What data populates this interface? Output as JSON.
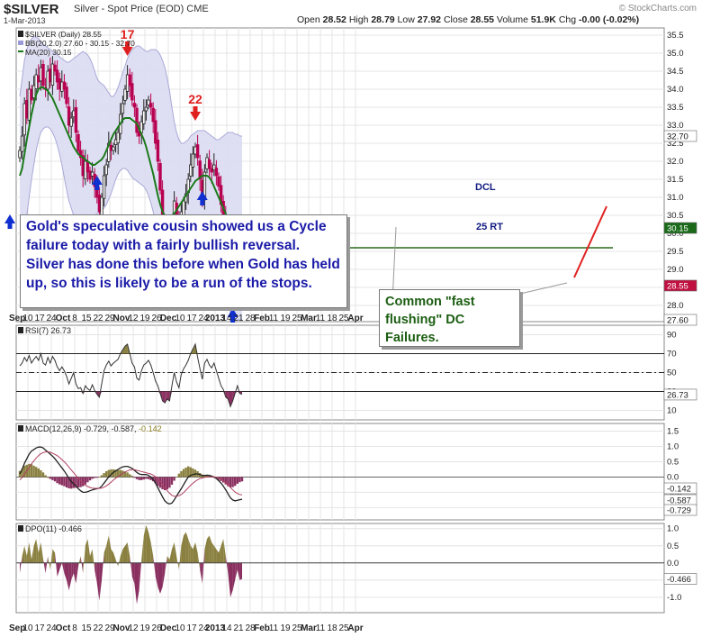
{
  "header": {
    "symbol": "$SILVER",
    "description": "Silver - Spot Price (EOD)  CME",
    "date": "1-Mar-2013",
    "brand": "© StockCharts.com",
    "ohlc": {
      "open_label": "Open",
      "open": "28.52",
      "high_label": "High",
      "high": "28.79",
      "low_label": "Low",
      "low": "27.92",
      "close_label": "Close",
      "close": "28.55",
      "volume_label": "Volume",
      "volume": "51.9K",
      "chg_label": "Chg",
      "chg": "-0.00 (-0.02%)"
    }
  },
  "colors": {
    "up_candle": "#ffffff",
    "down_candle": "#b80050",
    "band_fill": "#dcdcf2",
    "band_edge": "#a8a8d8",
    "ma_line": "#1a7a1a",
    "arrow_blue": "#1030d0",
    "arrow_red": "#e02020",
    "osc_pos_fill": "#8a8040",
    "osc_neg_fill": "#8a3060",
    "grid": "#e4e4e4"
  },
  "annotations": {
    "left_note": "Gold's speculative cousin showed us a Cycle failure today with a fairly bullish reversal. Silver has done this before when Gold has held up, so this is likely to be a run of the stops.",
    "right_note": "Common \"fast flushing\" DC Failures.",
    "cycle_17": "17",
    "cycle_22": "22",
    "dcl_label": "DCL",
    "rt_label": "25 RT"
  },
  "chart_data": [
    {
      "type": "candlestick",
      "title": "$SILVER (Daily) 28.55",
      "legend": [
        "$SILVER (Daily) 28.55",
        "BB(20,2.0) 27.60 - 30.15 - 32.70",
        "MA(20) 30.15"
      ],
      "y_axis_ticks": [
        28.0,
        28.5,
        29.0,
        29.5,
        30.0,
        30.5,
        31.0,
        31.5,
        32.0,
        32.5,
        33.0,
        33.5,
        34.0,
        34.5,
        35.0,
        35.5
      ],
      "y_tick_labels": [
        "28.0",
        "28.5",
        "29.0",
        "29.5",
        "30.0",
        "30.5",
        "31.0",
        "31.5",
        "32.0",
        "32.5",
        "33.0",
        "33.5",
        "34.0",
        "34.5",
        "35.0",
        "35.5"
      ],
      "ylim": [
        27.55,
        35.7
      ],
      "value_badges": [
        {
          "label": "32.70",
          "value": 32.7,
          "style": "band"
        },
        {
          "label": "30.15",
          "value": 30.15,
          "style": "ma"
        },
        {
          "label": "28.55",
          "value": 28.55,
          "style": "price"
        },
        {
          "label": "27.60",
          "value": 27.6,
          "style": "band"
        }
      ],
      "x_tick_labels": [
        "Sep",
        "10",
        "17",
        "24",
        "Oct",
        "8",
        "15",
        "22",
        "29",
        "Nov",
        "12",
        "19",
        "26",
        "Dec",
        "10",
        "17",
        "24",
        "2013",
        "14",
        "21",
        "28",
        "Feb",
        "11",
        "19",
        "25",
        "Mar",
        "11",
        "18",
        "25",
        "Apr"
      ],
      "x_bold_labels": [
        "Sep",
        "Oct",
        "Nov",
        "Dec",
        "2013",
        "Feb",
        "Mar",
        "Apr"
      ],
      "closes": [
        32.3,
        32.7,
        33.6,
        33.2,
        34.0,
        33.7,
        34.1,
        34.4,
        34.2,
        34.6,
        34.1,
        34.0,
        34.5,
        34.2,
        34.7,
        34.5,
        34.2,
        34.0,
        34.2,
        34.0,
        33.6,
        33.0,
        33.2,
        33.4,
        32.8,
        32.3,
        32.1,
        31.6,
        32.0,
        31.7,
        31.5,
        31.7,
        31.3,
        31.0,
        30.6,
        31.0,
        31.6,
        31.9,
        32.5,
        32.3,
        32.4,
        32.6,
        32.8,
        33.3,
        33.6,
        34.0,
        34.4,
        34.1,
        33.7,
        33.5,
        32.8,
        32.7,
        33.1,
        33.4,
        33.5,
        33.7,
        33.5,
        33.1,
        32.5,
        32.0,
        31.2,
        30.2,
        29.8,
        29.9,
        29.8,
        30.3,
        30.9,
        30.3,
        30.0,
        30.6,
        30.9,
        31.1,
        31.5,
        31.9,
        32.2,
        32.4,
        32.1,
        31.5,
        30.9,
        31.7,
        32.1,
        31.8,
        31.7,
        31.9,
        31.6,
        31.3,
        30.8,
        30.5,
        29.7,
        29.3,
        28.4,
        28.6,
        28.9,
        29.3,
        28.8,
        28.55
      ],
      "bb_upper": [
        33.8,
        34.3,
        34.8,
        35.1,
        35.3,
        35.4,
        35.45,
        35.45,
        35.4,
        35.3,
        35.25,
        35.2,
        35.15,
        35.1,
        35.05,
        35.0,
        34.95,
        34.9,
        34.85,
        34.8,
        34.75,
        34.75,
        34.8,
        34.85,
        34.9,
        34.95,
        35.0,
        35.05,
        35.0,
        34.95,
        34.85,
        34.7,
        34.5,
        34.3,
        34.2,
        34.15,
        34.1,
        34.0,
        33.9,
        33.8,
        33.8,
        33.9,
        34.05,
        34.25,
        34.45,
        34.65,
        34.85,
        35.0,
        35.1,
        35.15,
        35.2,
        35.2,
        35.15,
        35.1,
        35.05,
        35.05,
        35.1,
        35.1,
        35.1,
        35.05,
        34.95,
        34.8,
        34.6,
        34.3,
        33.95,
        33.5,
        33.1,
        32.8,
        32.6,
        32.5,
        32.5,
        32.55,
        32.6,
        32.7,
        32.75,
        32.8,
        32.85,
        32.85,
        32.85,
        32.85,
        32.8,
        32.75,
        32.7,
        32.65,
        32.6,
        32.6,
        32.65,
        32.7,
        32.75,
        32.8,
        32.8,
        32.8,
        32.75,
        32.75,
        32.7,
        32.7
      ],
      "bb_lower": [
        29.8,
        29.9,
        30.1,
        30.5,
        31.0,
        31.5,
        31.9,
        32.3,
        32.6,
        32.8,
        32.9,
        32.95,
        32.95,
        32.9,
        32.8,
        32.65,
        32.45,
        32.2,
        31.9,
        31.55,
        31.2,
        30.9,
        30.7,
        30.5,
        30.4,
        30.35,
        30.3,
        30.3,
        30.3,
        30.35,
        30.4,
        30.45,
        30.5,
        30.55,
        30.6,
        30.65,
        30.7,
        30.8,
        30.95,
        31.1,
        31.3,
        31.5,
        31.65,
        31.75,
        31.8,
        31.8,
        31.75,
        31.65,
        31.55,
        31.5,
        31.45,
        31.4,
        31.35,
        31.3,
        31.2,
        31.05,
        30.85,
        30.6,
        30.3,
        30.0,
        29.7,
        29.45,
        29.3,
        29.25,
        29.3,
        29.35,
        29.45,
        29.6,
        29.75,
        29.95,
        30.1,
        30.25,
        30.35,
        30.4,
        30.45,
        30.45,
        30.45,
        30.4,
        30.35,
        30.3,
        30.25,
        30.2,
        30.1,
        29.95,
        29.7,
        29.4,
        29.05,
        28.7,
        28.35,
        28.05,
        27.8,
        27.65,
        27.6,
        27.6,
        27.6,
        27.6
      ],
      "ma20": [
        31.6,
        31.8,
        32.2,
        32.6,
        32.95,
        33.3,
        33.6,
        33.85,
        34.0,
        34.05,
        34.05,
        34.0,
        33.95,
        33.85,
        33.75,
        33.6,
        33.45,
        33.3,
        33.15,
        33.0,
        32.85,
        32.7,
        32.55,
        32.4,
        32.3,
        32.2,
        32.15,
        32.1,
        32.05,
        32.0,
        31.95,
        31.9,
        31.9,
        31.95,
        32.0,
        32.05,
        32.15,
        32.3,
        32.45,
        32.6,
        32.75,
        32.85,
        32.95,
        33.05,
        33.15,
        33.2,
        33.2,
        33.2,
        33.15,
        33.1,
        33.05,
        32.9,
        32.75,
        32.6,
        32.4,
        32.15,
        31.9,
        31.65,
        31.35,
        31.05,
        30.8,
        30.6,
        30.5,
        30.45,
        30.45,
        30.5,
        30.55,
        30.65,
        30.75,
        30.85,
        30.95,
        31.05,
        31.15,
        31.25,
        31.35,
        31.45,
        31.5,
        31.55,
        31.6,
        31.6,
        31.6,
        31.55,
        31.45,
        31.3,
        31.15,
        31.0,
        30.85,
        30.7,
        30.55,
        30.4,
        30.3,
        30.2,
        30.15,
        30.15,
        30.15,
        30.15
      ],
      "trend_line_value": 29.6,
      "cycle_markers": [
        {
          "label": "17",
          "bar": 46,
          "style": "red-down"
        },
        {
          "label": "22",
          "bar": 75,
          "style": "red-down"
        }
      ],
      "low_markers": [
        0,
        33,
        62,
        78,
        91
      ]
    },
    {
      "type": "line",
      "title": "RSI(7) 26.73",
      "y_tick_labels": [
        "10",
        "30",
        "50",
        "70",
        "90"
      ],
      "y_ticks": [
        10,
        30,
        50,
        70,
        90
      ],
      "ylim": [
        0,
        100
      ],
      "reference_lines": [
        30,
        50,
        70
      ],
      "value_badge": "26.73",
      "values": [
        57,
        60,
        66,
        62,
        68,
        60,
        64,
        67,
        63,
        70,
        60,
        58,
        66,
        60,
        67,
        63,
        56,
        52,
        56,
        52,
        46,
        38,
        44,
        50,
        38,
        33,
        34,
        28,
        36,
        33,
        31,
        37,
        31,
        27,
        24,
        38,
        52,
        58,
        62,
        57,
        60,
        62,
        64,
        70,
        74,
        78,
        80,
        70,
        60,
        56,
        44,
        42,
        52,
        58,
        60,
        63,
        58,
        50,
        41,
        36,
        28,
        20,
        18,
        22,
        20,
        36,
        50,
        40,
        34,
        48,
        54,
        58,
        63,
        70,
        75,
        80,
        66,
        54,
        43,
        60,
        64,
        58,
        55,
        60,
        52,
        44,
        36,
        32,
        24,
        22,
        14,
        20,
        28,
        36,
        28,
        27
      ]
    },
    {
      "type": "line",
      "title": "MACD(12,26,9) -0.729, -0.587, -0.142",
      "series_labels": [
        "MACD(12,26,9) -0.729",
        "-0.587",
        "-0.142"
      ],
      "y_tick_labels": [
        "1.5",
        "1.0",
        "0.5",
        "0.0",
        "-0.5",
        "-1.0"
      ],
      "y_ticks": [
        1.5,
        1.0,
        0.5,
        0.0,
        -0.5,
        -1.0
      ],
      "ylim": [
        -1.4,
        1.75
      ],
      "value_badges": [
        "-0.142",
        "-0.587",
        "-0.729"
      ],
      "macd": [
        0.1,
        0.25,
        0.45,
        0.6,
        0.75,
        0.85,
        0.9,
        0.95,
        0.98,
        0.98,
        0.95,
        0.88,
        0.82,
        0.75,
        0.68,
        0.6,
        0.5,
        0.4,
        0.3,
        0.2,
        0.08,
        -0.05,
        -0.15,
        -0.22,
        -0.3,
        -0.38,
        -0.45,
        -0.5,
        -0.5,
        -0.48,
        -0.45,
        -0.42,
        -0.4,
        -0.38,
        -0.36,
        -0.3,
        -0.2,
        -0.1,
        0.0,
        0.08,
        0.15,
        0.2,
        0.25,
        0.3,
        0.33,
        0.35,
        0.35,
        0.32,
        0.28,
        0.22,
        0.15,
        0.1,
        0.08,
        0.08,
        0.08,
        0.05,
        0.0,
        -0.08,
        -0.2,
        -0.35,
        -0.5,
        -0.65,
        -0.78,
        -0.85,
        -0.88,
        -0.85,
        -0.75,
        -0.62,
        -0.5,
        -0.38,
        -0.25,
        -0.12,
        0.0,
        0.05,
        0.08,
        0.1,
        0.1,
        0.08,
        0.05,
        0.05,
        0.06,
        0.05,
        0.03,
        0.0,
        -0.05,
        -0.12,
        -0.2,
        -0.3,
        -0.42,
        -0.55,
        -0.68,
        -0.75,
        -0.78,
        -0.76,
        -0.74,
        -0.729
      ],
      "signal": [
        -0.1,
        -0.02,
        0.08,
        0.2,
        0.32,
        0.43,
        0.53,
        0.62,
        0.7,
        0.76,
        0.8,
        0.82,
        0.82,
        0.81,
        0.78,
        0.74,
        0.7,
        0.64,
        0.57,
        0.5,
        0.42,
        0.32,
        0.23,
        0.14,
        0.05,
        -0.04,
        -0.12,
        -0.2,
        -0.26,
        -0.31,
        -0.34,
        -0.36,
        -0.37,
        -0.37,
        -0.37,
        -0.36,
        -0.33,
        -0.29,
        -0.23,
        -0.17,
        -0.1,
        -0.04,
        0.02,
        0.07,
        0.12,
        0.17,
        0.2,
        0.23,
        0.24,
        0.24,
        0.22,
        0.2,
        0.18,
        0.16,
        0.14,
        0.12,
        0.1,
        0.06,
        0.01,
        -0.06,
        -0.15,
        -0.25,
        -0.35,
        -0.45,
        -0.53,
        -0.6,
        -0.63,
        -0.63,
        -0.61,
        -0.57,
        -0.51,
        -0.43,
        -0.35,
        -0.27,
        -0.2,
        -0.14,
        -0.09,
        -0.05,
        -0.03,
        -0.01,
        0.0,
        0.01,
        0.01,
        0.01,
        -0.01,
        -0.03,
        -0.07,
        -0.12,
        -0.18,
        -0.25,
        -0.34,
        -0.42,
        -0.49,
        -0.54,
        -0.57,
        -0.587
      ]
    },
    {
      "type": "area",
      "title": "DPO(11) -0.466",
      "y_tick_labels": [
        "1.0",
        "0.5",
        "0.0",
        "-0.5",
        "-1.0"
      ],
      "y_ticks": [
        1.0,
        0.5,
        0.0,
        -0.5,
        -1.0
      ],
      "ylim": [
        -1.45,
        1.15
      ],
      "value_badge": "-0.466",
      "values": [
        -0.3,
        0.2,
        0.5,
        0.2,
        0.6,
        0.1,
        0.5,
        0.7,
        0.3,
        0.6,
        0.1,
        -0.3,
        0.2,
        -0.2,
        0.4,
        0.3,
        -0.4,
        -0.2,
        0.0,
        -0.3,
        -0.5,
        -0.8,
        -0.5,
        -0.3,
        -0.6,
        -0.1,
        0.2,
        -0.3,
        0.5,
        0.7,
        0.2,
        0.4,
        -0.2,
        -0.6,
        -1.1,
        -0.5,
        0.3,
        0.5,
        0.8,
        0.4,
        0.3,
        0.1,
        -0.1,
        0.2,
        0.4,
        0.5,
        0.6,
        0.2,
        -0.4,
        -0.6,
        -1.2,
        -0.8,
        0.1,
        0.8,
        1.1,
        0.9,
        0.6,
        0.2,
        -0.4,
        -0.7,
        -0.9,
        -0.7,
        -0.3,
        0.2,
        0.1,
        0.4,
        0.6,
        0.2,
        -0.2,
        0.5,
        0.8,
        0.9,
        0.7,
        0.5,
        0.4,
        0.6,
        0.3,
        -0.2,
        -0.6,
        0.4,
        0.7,
        0.8,
        0.6,
        0.5,
        0.4,
        0.3,
        0.5,
        0.7,
        0.2,
        -0.3,
        -1.0,
        -0.8,
        -0.5,
        -0.2,
        -0.5,
        -0.466
      ]
    }
  ]
}
